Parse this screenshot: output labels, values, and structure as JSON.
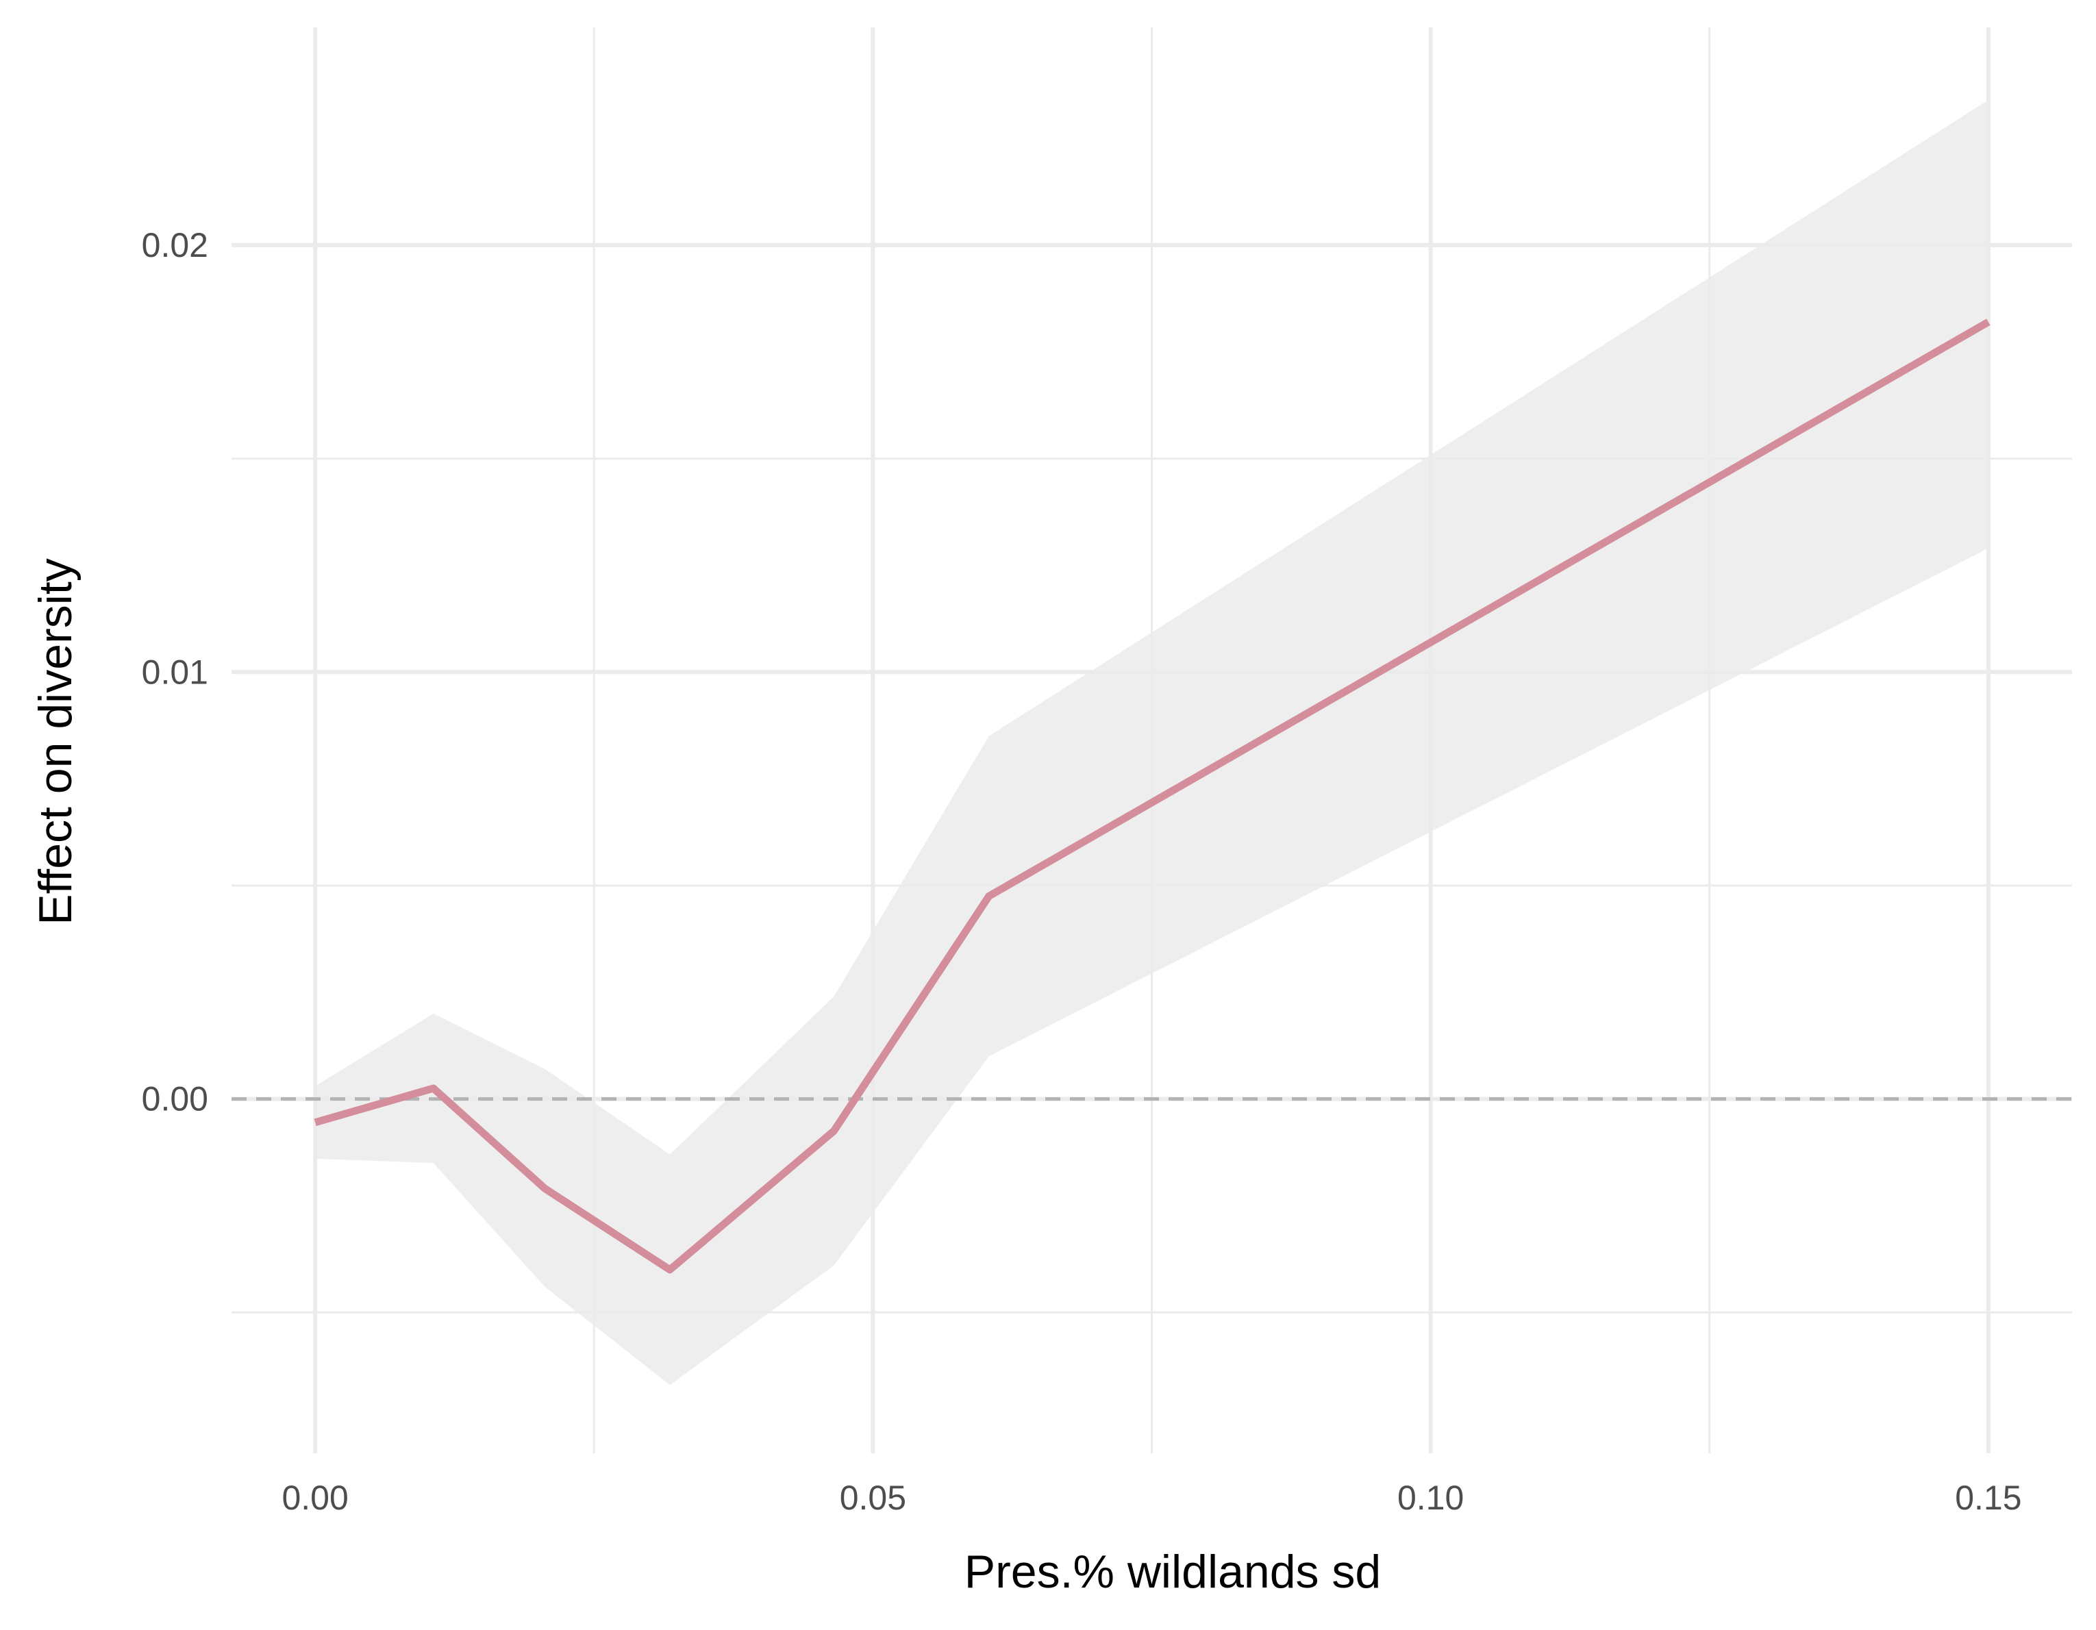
{
  "chart_data": {
    "type": "line",
    "title": "",
    "xlabel": "Pres.% wildlands sd",
    "ylabel": "Effect on diversity",
    "xlim": [
      -0.0075,
      0.1575
    ],
    "ylim": [
      -0.0083,
      0.0251
    ],
    "x_ticks": [
      0.0,
      0.05,
      0.1,
      0.15
    ],
    "x_tick_labels": [
      "0.00",
      "0.05",
      "0.10",
      "0.15"
    ],
    "y_ticks": [
      0.0,
      0.01,
      0.02
    ],
    "y_tick_labels": [
      "0.00",
      "0.01",
      "0.02"
    ],
    "x_minor_ticks": [
      0.025,
      0.075,
      0.125
    ],
    "y_minor_ticks": [
      -0.005,
      0.005,
      0.015
    ],
    "grid": true,
    "reference_line": {
      "y": 0,
      "style": "dashed",
      "color": "#b3b3b3"
    },
    "series": [
      {
        "x": [
          0.0,
          0.0106,
          0.0206,
          0.0318,
          0.0465,
          0.0604,
          0.15
        ],
        "y": [
          -0.00055,
          0.00025,
          -0.0021,
          -0.004,
          -0.00075,
          0.00475,
          0.0182
        ],
        "ci_lower": [
          -0.0014,
          -0.0015,
          -0.0044,
          -0.0067,
          -0.0039,
          0.001,
          0.0129
        ],
        "ci_upper": [
          0.0003,
          0.002,
          0.0007,
          -0.0013,
          0.0024,
          0.0085,
          0.0234
        ],
        "color": "#d48d9a",
        "band_color": "#ebebeb"
      }
    ]
  }
}
